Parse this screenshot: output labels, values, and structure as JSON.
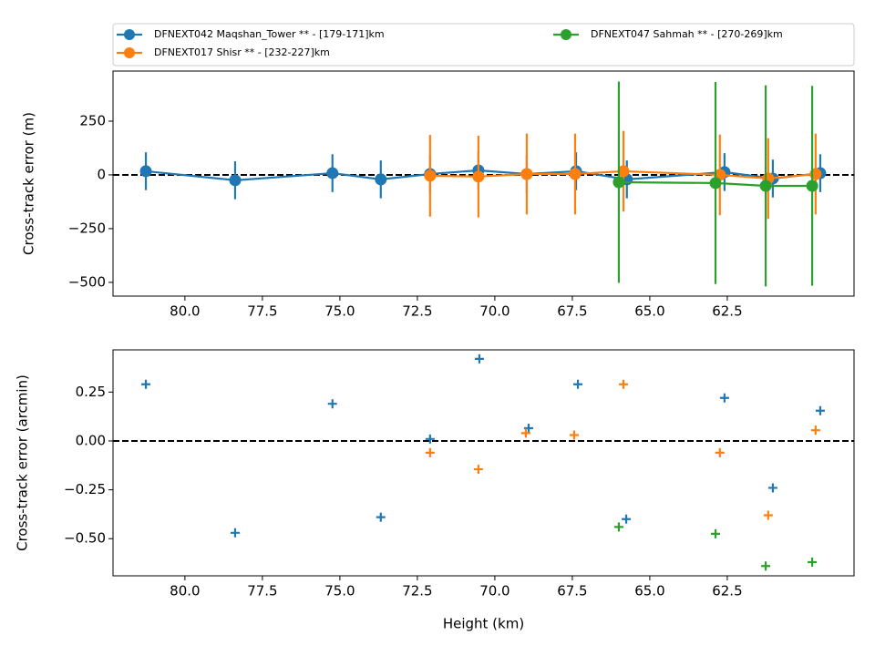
{
  "chart_data": [
    {
      "type": "line",
      "ylabel": "Cross-track error (m)",
      "xlim": [
        82.32,
        58.41
      ],
      "ylim": [
        -564,
        483
      ],
      "hline": 0,
      "xticks": [
        {
          "value": 80,
          "label": "80.0"
        },
        {
          "value": 77.5,
          "label": "77.5"
        },
        {
          "value": 75,
          "label": "75.0"
        },
        {
          "value": 72.5,
          "label": "72.5"
        },
        {
          "value": 70,
          "label": "70.0"
        },
        {
          "value": 67.5,
          "label": "67.5"
        },
        {
          "value": 65,
          "label": "65.0"
        },
        {
          "value": 62.5,
          "label": "62.5"
        }
      ],
      "yticks": [
        250,
        0,
        {
          "value": -250,
          "label": "−250"
        },
        {
          "value": -500,
          "label": "−500"
        }
      ],
      "series": [
        {
          "name": "DFNEXT042 Maqshan_Tower **  - [179-171]km",
          "color": "#1f77b4",
          "x": [
            81.26,
            78.38,
            75.24,
            73.68,
            72.09,
            70.53,
            68.97,
            67.38,
            65.74,
            62.59,
            61.03,
            59.5
          ],
          "values": [
            17,
            -25,
            8,
            -21,
            4,
            21,
            4,
            17,
            -21,
            13,
            -17,
            8
          ],
          "errors": [
            88,
            88,
            88,
            88,
            88,
            88,
            88,
            88,
            88,
            88,
            88,
            88
          ]
        },
        {
          "name": "DFNEXT017 Shisr **  - [232-227]km",
          "color": "#ff7f0e",
          "x": [
            72.09,
            70.53,
            68.97,
            67.41,
            65.85,
            62.74,
            61.18,
            59.65
          ],
          "values": [
            -4,
            -8,
            4,
            4,
            17,
            0,
            -17,
            4
          ],
          "errors": [
            190,
            190,
            188,
            188,
            188,
            188,
            188,
            188
          ]
        },
        {
          "name": "DFNEXT047 Sahmah **  - [270-269]km",
          "color": "#2ca02c",
          "x": [
            66.0,
            62.88,
            61.26,
            59.76
          ],
          "values": [
            -34,
            -38,
            -51,
            -51
          ],
          "errors": [
            468,
            470,
            468,
            465
          ]
        }
      ]
    },
    {
      "type": "scatter",
      "ylabel": "Cross-track error (arcmin)",
      "xlabel": "Height (km)",
      "xlim": [
        82.32,
        58.41
      ],
      "ylim": [
        -0.69,
        0.466
      ],
      "hline": 0,
      "xticks": [
        {
          "value": 80,
          "label": "80.0"
        },
        {
          "value": 77.5,
          "label": "77.5"
        },
        {
          "value": 75,
          "label": "75.0"
        },
        {
          "value": 72.5,
          "label": "72.5"
        },
        {
          "value": 70,
          "label": "70.0"
        },
        {
          "value": 67.5,
          "label": "67.5"
        },
        {
          "value": 65,
          "label": "65.0"
        },
        {
          "value": 62.5,
          "label": "62.5"
        }
      ],
      "yticks": [
        0.25,
        {
          "value": 0,
          "label": "0.00"
        },
        {
          "value": -0.25,
          "label": "−0.25"
        },
        {
          "value": -0.5,
          "label": "−0.50"
        }
      ],
      "series": [
        {
          "color": "#1f77b4",
          "x": [
            81.26,
            78.38,
            75.24,
            73.68,
            72.09,
            70.5,
            68.91,
            67.32,
            65.76,
            62.59,
            61.03,
            59.5
          ],
          "values": [
            0.29,
            -0.47,
            0.19,
            -0.39,
            0.01,
            0.42,
            0.065,
            0.29,
            -0.4,
            0.22,
            -0.24,
            0.155
          ]
        },
        {
          "color": "#ff7f0e",
          "x": [
            72.09,
            70.53,
            69.0,
            67.44,
            65.85,
            62.74,
            61.18,
            59.65
          ],
          "values": [
            -0.06,
            -0.145,
            0.04,
            0.03,
            0.29,
            -0.06,
            -0.38,
            0.055
          ]
        },
        {
          "color": "#2ca02c",
          "x": [
            66.0,
            62.88,
            61.26,
            59.76
          ],
          "values": [
            -0.44,
            -0.475,
            -0.64,
            -0.62
          ]
        }
      ]
    }
  ]
}
